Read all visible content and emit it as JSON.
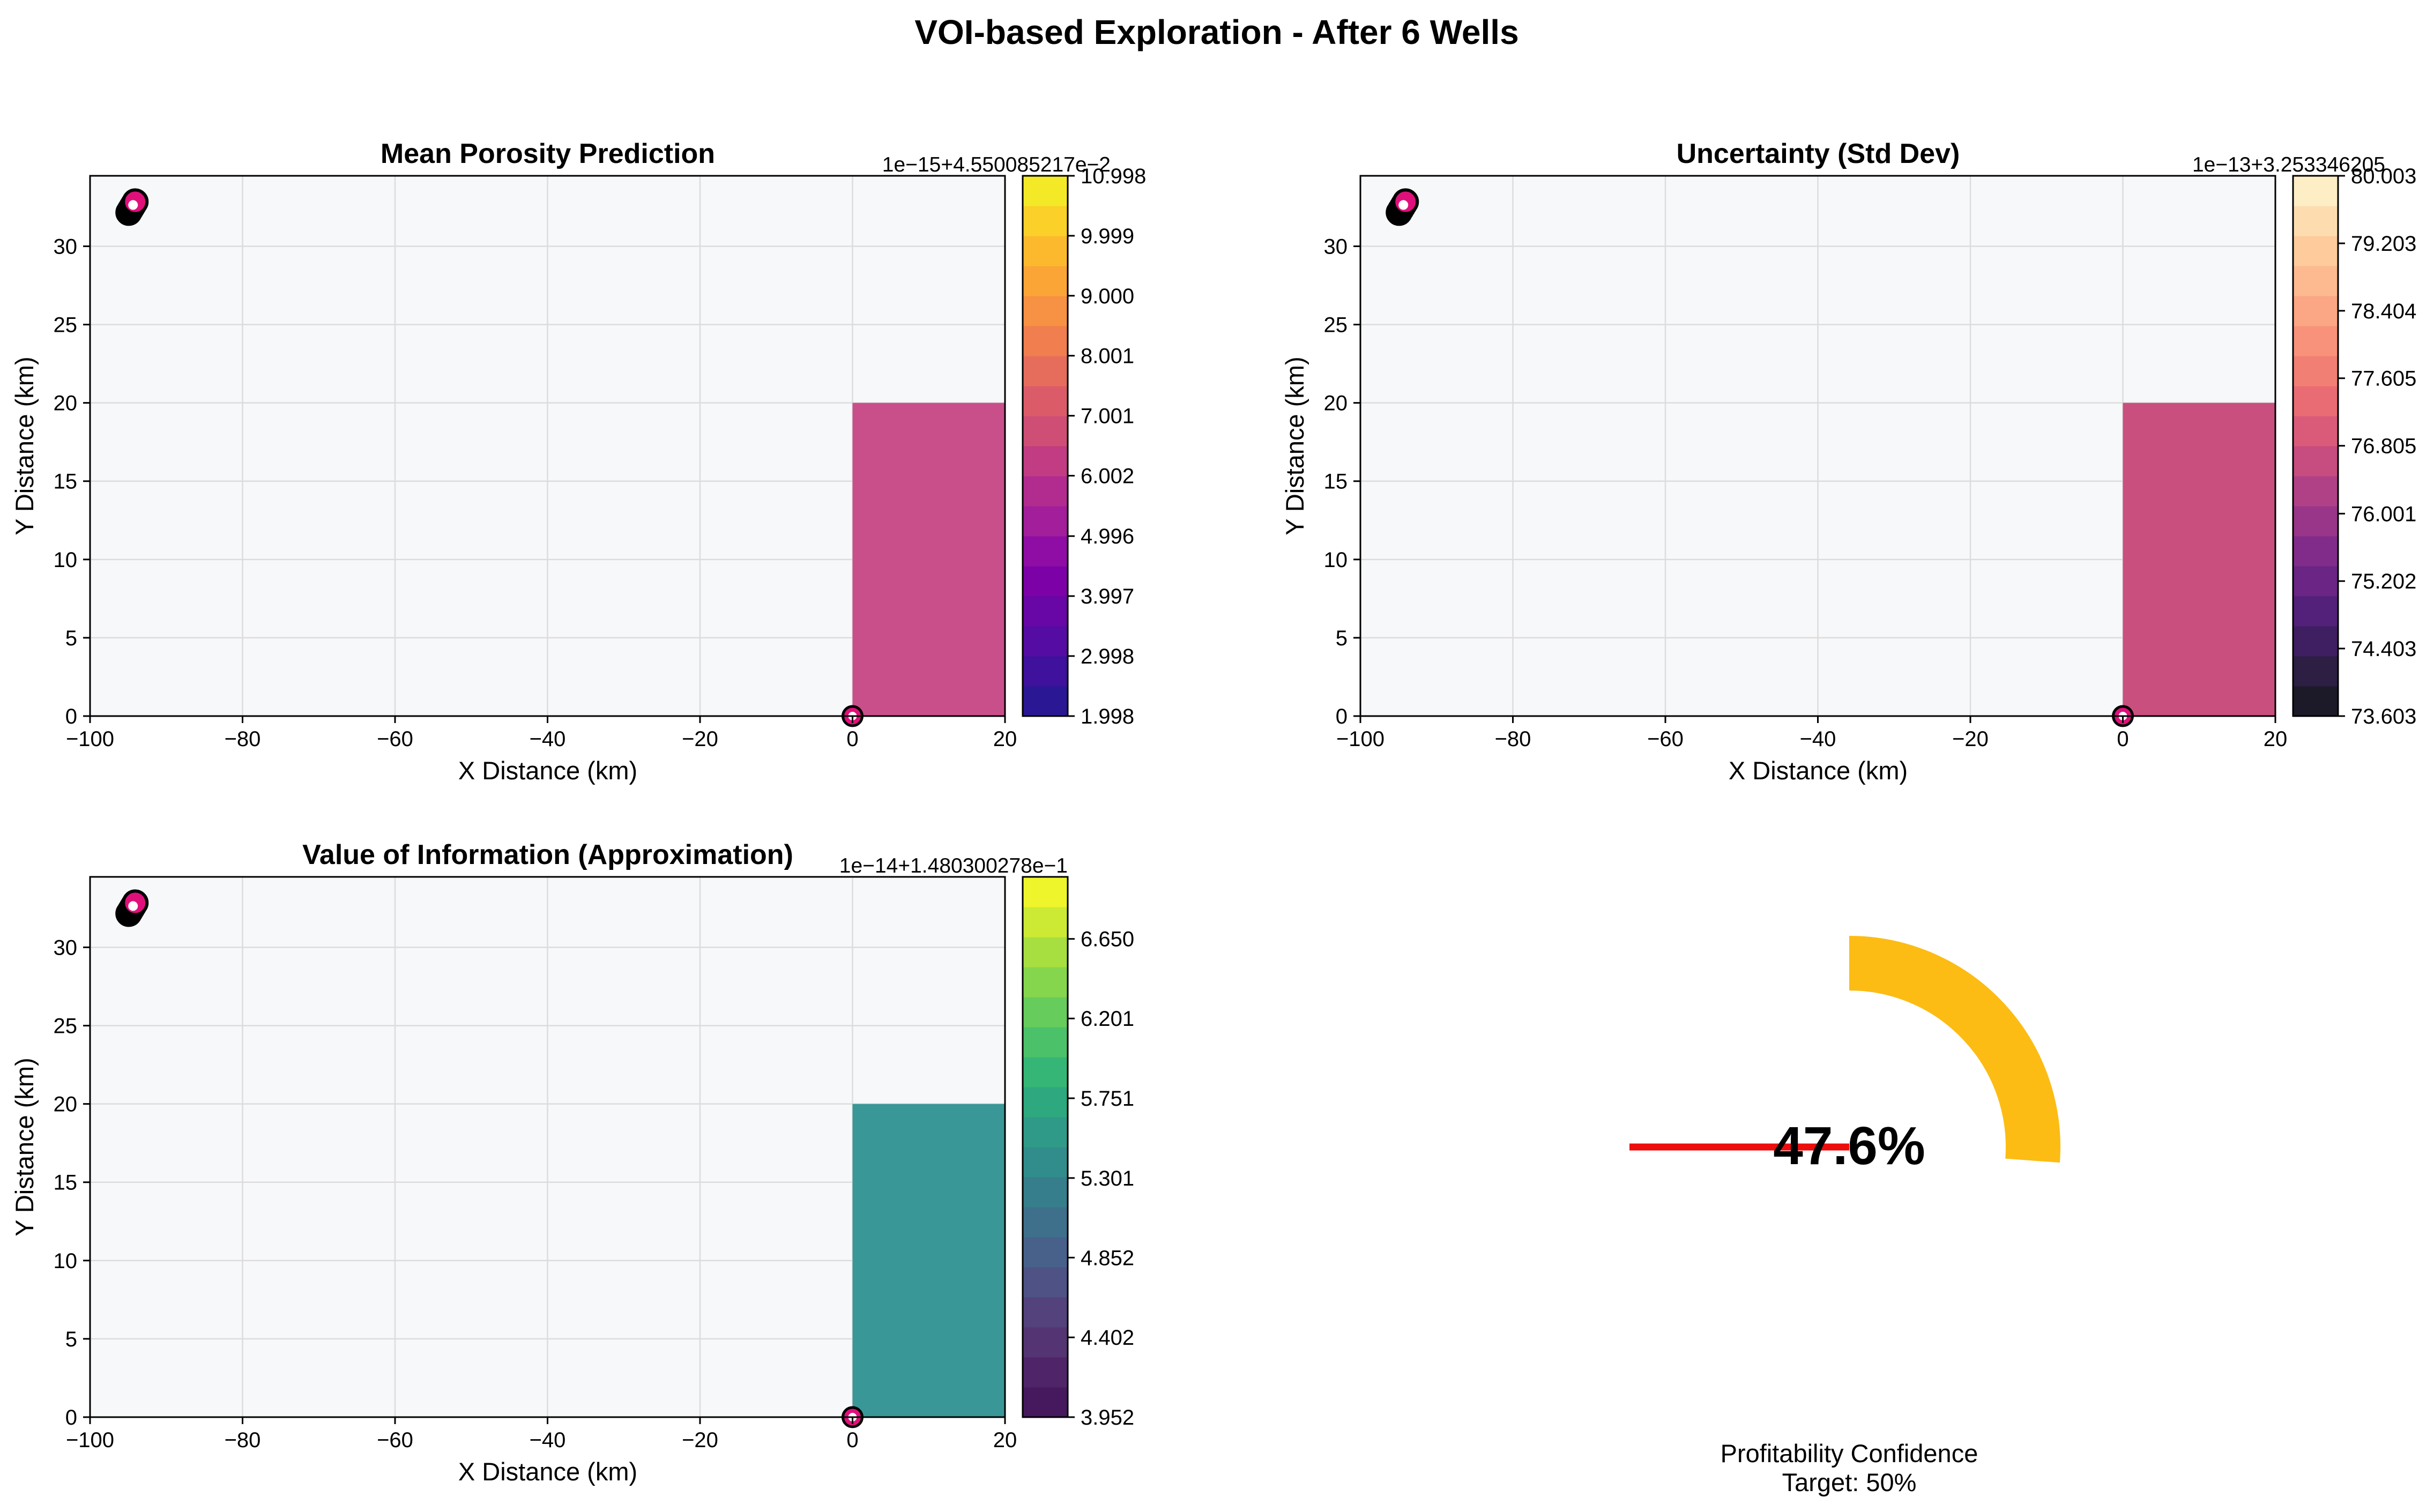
{
  "title": "VOI-based Exploration - After 6 Wells",
  "colors": {
    "plot_bg": "#f7f8fa",
    "grid": "#dcdcdc",
    "porosity_patch": "#c94f8a",
    "uncertainty_patch": "#c94f7e",
    "voi_patch": "#3a9797",
    "well_marker": "#e0107a",
    "gauge_arc": "#fcbc13",
    "gauge_needle": "#ee0d0d",
    "plasma": [
      "#2a1794",
      "#3f119c",
      "#540ca3",
      "#6806a6",
      "#7c02a7",
      "#8f0da4",
      "#a21e9a",
      "#b22b8f",
      "#c13c82",
      "#cf4e75",
      "#db5c68",
      "#e66c5c",
      "#f07e4f",
      "#f79143",
      "#fba537",
      "#fdb92e",
      "#fad029",
      "#f4e926"
    ],
    "magma": [
      "#1c1a28",
      "#2c1f43",
      "#3f1e62",
      "#53207a",
      "#6a2585",
      "#812c8a",
      "#993689",
      "#b04187",
      "#c74c80",
      "#da5b79",
      "#e96c74",
      "#f17f73",
      "#f8927a",
      "#fba684",
      "#fdb990",
      "#fdcb9c",
      "#fdddb0",
      "#fdeec5"
    ],
    "viridis": [
      "#46195e",
      "#4f2468",
      "#543472",
      "#53427c",
      "#4e5285",
      "#47618b",
      "#3e708c",
      "#367e8c",
      "#318c8c",
      "#2f9a87",
      "#2da87f",
      "#35b676",
      "#4bc26a",
      "#66cc5c",
      "#86d64d",
      "#a8df40",
      "#ccea34",
      "#eef52a"
    ]
  },
  "gauge": {
    "value_text": "47.6%",
    "value": 47.6,
    "target": 50,
    "label_line1": "Profitability Confidence",
    "label_line2": "Target: 50%"
  },
  "chart_data": [
    {
      "type": "heatmap",
      "title": "Mean Porosity Prediction",
      "xlabel": "X Distance (km)",
      "ylabel": "Y Distance (km)",
      "xlim": [
        -100,
        20
      ],
      "ylim": [
        0,
        34.5
      ],
      "xticks": [
        -100,
        -80,
        -60,
        -40,
        -20,
        0,
        20
      ],
      "yticks": [
        0,
        5,
        10,
        15,
        20,
        25,
        30
      ],
      "grid": true,
      "filled_region": {
        "x": [
          0,
          20
        ],
        "y": [
          0,
          20
        ]
      },
      "wells": [
        {
          "x": -94.5,
          "y": 32.5
        },
        {
          "x": 0,
          "y": 0
        }
      ],
      "colorbar": {
        "cmap": "plasma",
        "offset_text": "1e−15+4.550085217e−2",
        "min": 1.998,
        "max": 10.998,
        "ticks": [
          "1.998",
          "2.998",
          "3.997",
          "4.996",
          "6.002",
          "7.001",
          "8.001",
          "9.000",
          "9.999",
          "10.998"
        ],
        "tick_values": [
          1.998,
          2.998,
          3.997,
          4.996,
          6.002,
          7.001,
          8.001,
          9.0,
          9.999,
          10.998
        ]
      }
    },
    {
      "type": "heatmap",
      "title": "Uncertainty (Std Dev)",
      "xlabel": "X Distance (km)",
      "ylabel": "Y Distance (km)",
      "xlim": [
        -100,
        20
      ],
      "ylim": [
        0,
        34.5
      ],
      "xticks": [
        -100,
        -80,
        -60,
        -40,
        -20,
        0,
        20
      ],
      "yticks": [
        0,
        5,
        10,
        15,
        20,
        25,
        30
      ],
      "grid": true,
      "filled_region": {
        "x": [
          0,
          20
        ],
        "y": [
          0,
          20
        ]
      },
      "wells": [
        {
          "x": -94.5,
          "y": 32.5
        },
        {
          "x": 0,
          "y": 0
        }
      ],
      "colorbar": {
        "cmap": "magma",
        "offset_text": "1e−13+3.253346205",
        "min": 73.603,
        "max": 80.003,
        "ticks": [
          "73.603",
          "74.403",
          "75.202",
          "76.001",
          "76.805",
          "77.605",
          "78.404",
          "79.203",
          "80.003"
        ],
        "tick_values": [
          73.603,
          74.403,
          75.202,
          76.001,
          76.805,
          77.605,
          78.404,
          79.203,
          80.003
        ]
      }
    },
    {
      "type": "heatmap",
      "title": "Value of Information (Approximation)",
      "xlabel": "X Distance (km)",
      "ylabel": "Y Distance (km)",
      "xlim": [
        -100,
        20
      ],
      "ylim": [
        0,
        34.5
      ],
      "xticks": [
        -100,
        -80,
        -60,
        -40,
        -20,
        0,
        20
      ],
      "yticks": [
        0,
        5,
        10,
        15,
        20,
        25,
        30
      ],
      "grid": true,
      "filled_region": {
        "x": [
          0,
          20
        ],
        "y": [
          0,
          20
        ]
      },
      "wells": [
        {
          "x": -94.5,
          "y": 32.5
        },
        {
          "x": 0,
          "y": 0
        }
      ],
      "colorbar": {
        "cmap": "viridis",
        "offset_text": "1e−14+1.480300278e−1",
        "min": 3.952,
        "max": 7.0,
        "ticks": [
          "3.952",
          "4.402",
          "4.852",
          "5.301",
          "5.751",
          "6.201",
          "6.650"
        ],
        "tick_values": [
          3.952,
          4.402,
          4.852,
          5.301,
          5.751,
          6.201,
          6.65
        ]
      }
    }
  ]
}
